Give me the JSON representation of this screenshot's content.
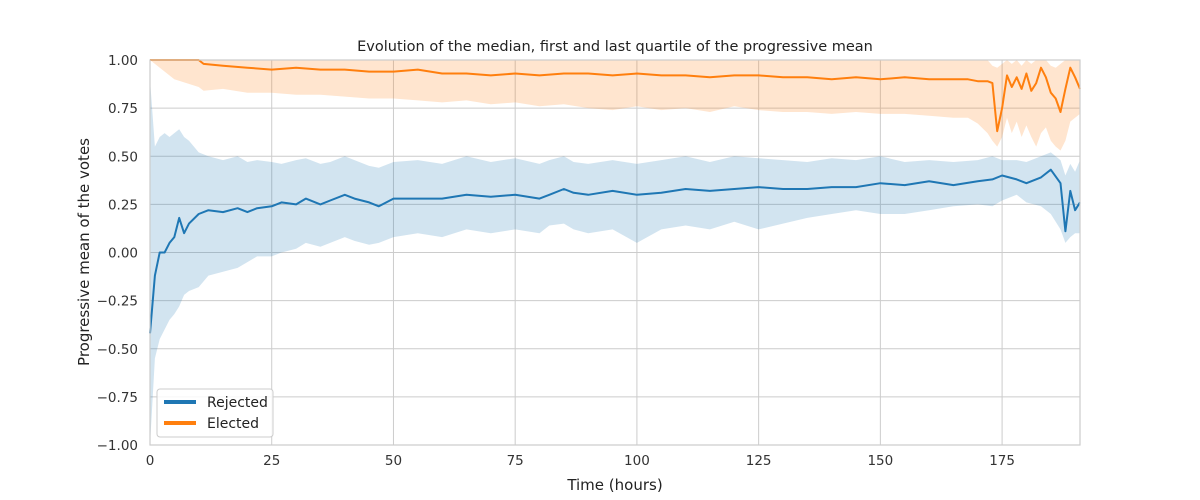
{
  "chart_data": {
    "type": "line",
    "title": "Evolution of the median, first and last quartile of the progressive mean",
    "xlabel": "Time (hours)",
    "ylabel": "Progressive mean of the votes",
    "xlim": [
      0,
      191
    ],
    "ylim": [
      -1.0,
      1.0
    ],
    "xticks": [
      0,
      25,
      50,
      75,
      100,
      125,
      150,
      175
    ],
    "yticks": [
      -1.0,
      -0.75,
      -0.5,
      -0.25,
      0.0,
      0.25,
      0.5,
      0.75,
      1.0
    ],
    "xtick_labels": [
      "0",
      "25",
      "50",
      "75",
      "100",
      "125",
      "150",
      "175"
    ],
    "ytick_labels": [
      "−1.00",
      "−0.75",
      "−0.50",
      "−0.25",
      "0.00",
      "0.25",
      "0.50",
      "0.75",
      "1.00"
    ],
    "grid": true,
    "legend_position": "lower-left",
    "series": [
      {
        "name": "Rejected",
        "color": "#1f77b4",
        "band_opacity": 0.2,
        "x": [
          0,
          1,
          2,
          3,
          4,
          5,
          6,
          7,
          8,
          10,
          12,
          15,
          18,
          20,
          22,
          25,
          27,
          30,
          32,
          35,
          37,
          40,
          42,
          45,
          47,
          50,
          55,
          60,
          65,
          70,
          75,
          80,
          82,
          85,
          87,
          90,
          95,
          100,
          105,
          110,
          115,
          120,
          125,
          130,
          135,
          140,
          145,
          150,
          155,
          160,
          165,
          170,
          173,
          175,
          178,
          180,
          183,
          185,
          187,
          188,
          189,
          190,
          191
        ],
        "median": [
          -0.42,
          -0.12,
          0.0,
          0.0,
          0.05,
          0.08,
          0.18,
          0.1,
          0.15,
          0.2,
          0.22,
          0.21,
          0.23,
          0.21,
          0.23,
          0.24,
          0.26,
          0.25,
          0.28,
          0.25,
          0.27,
          0.3,
          0.28,
          0.26,
          0.24,
          0.28,
          0.28,
          0.28,
          0.3,
          0.29,
          0.3,
          0.28,
          0.3,
          0.33,
          0.31,
          0.3,
          0.32,
          0.3,
          0.31,
          0.33,
          0.32,
          0.33,
          0.34,
          0.33,
          0.33,
          0.34,
          0.34,
          0.36,
          0.35,
          0.37,
          0.35,
          0.37,
          0.38,
          0.4,
          0.38,
          0.36,
          0.39,
          0.43,
          0.36,
          0.11,
          0.32,
          0.22,
          0.26
        ],
        "q1": [
          -1.0,
          -0.55,
          -0.45,
          -0.4,
          -0.35,
          -0.32,
          -0.28,
          -0.22,
          -0.2,
          -0.18,
          -0.12,
          -0.1,
          -0.08,
          -0.05,
          -0.02,
          -0.02,
          0.0,
          0.02,
          0.05,
          0.03,
          0.05,
          0.08,
          0.06,
          0.04,
          0.05,
          0.08,
          0.1,
          0.08,
          0.12,
          0.1,
          0.12,
          0.1,
          0.14,
          0.15,
          0.12,
          0.1,
          0.12,
          0.05,
          0.12,
          0.14,
          0.12,
          0.16,
          0.12,
          0.15,
          0.18,
          0.2,
          0.22,
          0.2,
          0.2,
          0.22,
          0.24,
          0.25,
          0.24,
          0.27,
          0.3,
          0.26,
          0.24,
          0.2,
          0.12,
          0.05,
          0.08,
          0.1,
          0.1
        ],
        "q3": [
          0.9,
          0.55,
          0.6,
          0.62,
          0.6,
          0.62,
          0.64,
          0.6,
          0.58,
          0.52,
          0.5,
          0.48,
          0.5,
          0.47,
          0.48,
          0.47,
          0.46,
          0.48,
          0.49,
          0.46,
          0.47,
          0.5,
          0.48,
          0.45,
          0.44,
          0.47,
          0.48,
          0.46,
          0.5,
          0.47,
          0.49,
          0.46,
          0.48,
          0.5,
          0.47,
          0.46,
          0.48,
          0.46,
          0.48,
          0.5,
          0.47,
          0.5,
          0.49,
          0.48,
          0.47,
          0.49,
          0.48,
          0.5,
          0.47,
          0.48,
          0.47,
          0.48,
          0.5,
          0.48,
          0.48,
          0.47,
          0.5,
          0.52,
          0.48,
          0.4,
          0.46,
          0.42,
          0.48
        ]
      },
      {
        "name": "Elected",
        "color": "#ff7f0e",
        "band_opacity": 0.2,
        "x": [
          0,
          5,
          10,
          11,
          15,
          20,
          25,
          30,
          35,
          40,
          45,
          50,
          55,
          60,
          65,
          70,
          75,
          80,
          85,
          90,
          95,
          100,
          105,
          110,
          115,
          120,
          125,
          130,
          135,
          140,
          145,
          150,
          155,
          160,
          165,
          168,
          170,
          172,
          173,
          174,
          175,
          176,
          177,
          178,
          179,
          180,
          181,
          182,
          183,
          184,
          185,
          186,
          187,
          188,
          189,
          190,
          191
        ],
        "median": [
          1.0,
          1.0,
          1.0,
          0.98,
          0.97,
          0.96,
          0.95,
          0.96,
          0.95,
          0.95,
          0.94,
          0.94,
          0.95,
          0.93,
          0.93,
          0.92,
          0.93,
          0.92,
          0.93,
          0.93,
          0.92,
          0.93,
          0.92,
          0.92,
          0.91,
          0.92,
          0.92,
          0.91,
          0.91,
          0.9,
          0.91,
          0.9,
          0.91,
          0.9,
          0.9,
          0.9,
          0.89,
          0.89,
          0.88,
          0.63,
          0.75,
          0.92,
          0.86,
          0.91,
          0.85,
          0.93,
          0.84,
          0.88,
          0.96,
          0.91,
          0.83,
          0.8,
          0.73,
          0.85,
          0.96,
          0.91,
          0.85
        ],
        "q1": [
          1.0,
          0.9,
          0.86,
          0.84,
          0.85,
          0.83,
          0.83,
          0.82,
          0.82,
          0.81,
          0.8,
          0.8,
          0.79,
          0.78,
          0.79,
          0.77,
          0.78,
          0.76,
          0.77,
          0.75,
          0.74,
          0.76,
          0.74,
          0.75,
          0.73,
          0.76,
          0.74,
          0.73,
          0.73,
          0.72,
          0.73,
          0.72,
          0.72,
          0.71,
          0.7,
          0.7,
          0.67,
          0.62,
          0.58,
          0.55,
          0.6,
          0.7,
          0.62,
          0.68,
          0.6,
          0.66,
          0.6,
          0.55,
          0.62,
          0.65,
          0.58,
          0.55,
          0.53,
          0.58,
          0.68,
          0.7,
          0.72
        ],
        "q3": [
          1.0,
          1.0,
          1.0,
          1.0,
          1.0,
          1.0,
          1.0,
          1.0,
          1.0,
          1.0,
          1.0,
          1.0,
          1.0,
          1.0,
          1.0,
          1.0,
          1.0,
          1.0,
          1.0,
          1.0,
          1.0,
          1.0,
          1.0,
          1.0,
          1.0,
          1.0,
          1.0,
          1.0,
          1.0,
          1.0,
          1.0,
          1.0,
          1.0,
          1.0,
          1.0,
          1.0,
          1.0,
          1.0,
          0.97,
          0.96,
          0.98,
          1.0,
          0.98,
          1.0,
          0.97,
          1.0,
          0.98,
          1.0,
          1.0,
          1.0,
          0.97,
          0.96,
          0.98,
          1.0,
          1.0,
          1.0,
          1.0
        ]
      }
    ],
    "legend": [
      {
        "label": "Rejected",
        "color": "#1f77b4"
      },
      {
        "label": "Elected",
        "color": "#ff7f0e"
      }
    ]
  }
}
